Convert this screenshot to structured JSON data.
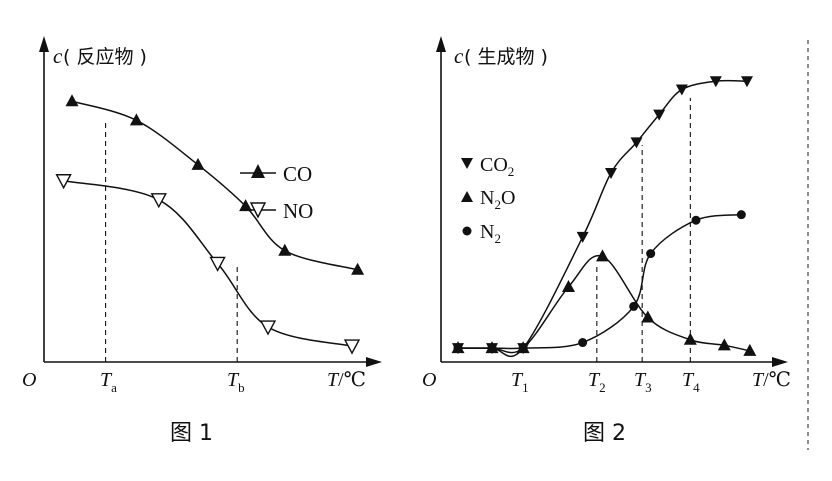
{
  "chart_data": [
    {
      "type": "line",
      "caption": "图 1",
      "ylabel": "c( 反应物 )",
      "origin_label": "O",
      "xlabel": "T/℃",
      "xticks": [
        "T_a",
        "T_b"
      ],
      "xlim": [
        0,
        12
      ],
      "ylim": [
        0,
        10
      ],
      "grid": false,
      "legend_position": "right",
      "series": [
        {
          "name": "CO",
          "marker": "filled-up-triangle",
          "x": [
            1,
            3.3,
            5.5,
            7.2,
            8.6,
            11.2
          ],
          "y": [
            8.2,
            7.6,
            6.2,
            4.9,
            3.5,
            2.9
          ]
        },
        {
          "name": "NO",
          "marker": "open-down-triangle",
          "x": [
            0.7,
            4.1,
            6.2,
            8.0,
            11.0
          ],
          "y": [
            5.7,
            5.1,
            3.1,
            1.1,
            0.5
          ]
        }
      ]
    },
    {
      "type": "line",
      "caption": "图 2",
      "ylabel": "c( 生成物 )",
      "origin_label": "O",
      "xlabel": "T/℃",
      "xticks": [
        "T_1",
        "T_2",
        "T_3",
        "T_4"
      ],
      "xlim": [
        0,
        12
      ],
      "ylim": [
        0,
        10
      ],
      "grid": false,
      "legend_position": "top-left",
      "series": [
        {
          "name": "CO2",
          "marker": "filled-down-triangle",
          "x": [
            0.6,
            1.8,
            2.9,
            5.0,
            6.0,
            6.9,
            7.7,
            8.5,
            9.7,
            10.8
          ],
          "y": [
            0.5,
            0.5,
            0.5,
            4.5,
            6.8,
            7.9,
            8.9,
            9.8,
            10.1,
            10.1
          ]
        },
        {
          "name": "N2O",
          "marker": "filled-up-triangle",
          "x": [
            0.6,
            1.8,
            2.9,
            4.5,
            5.7,
            7.3,
            8.8,
            10.0,
            10.9
          ],
          "y": [
            0.5,
            0.5,
            0.5,
            2.7,
            3.8,
            1.6,
            0.8,
            0.6,
            0.4
          ]
        },
        {
          "name": "N2",
          "marker": "filled-circle",
          "x": [
            0.6,
            1.8,
            2.9,
            5.0,
            6.8,
            7.4,
            9.0,
            10.6
          ],
          "y": [
            0.5,
            0.5,
            0.5,
            0.7,
            2.0,
            3.9,
            5.1,
            5.3
          ]
        }
      ]
    }
  ]
}
